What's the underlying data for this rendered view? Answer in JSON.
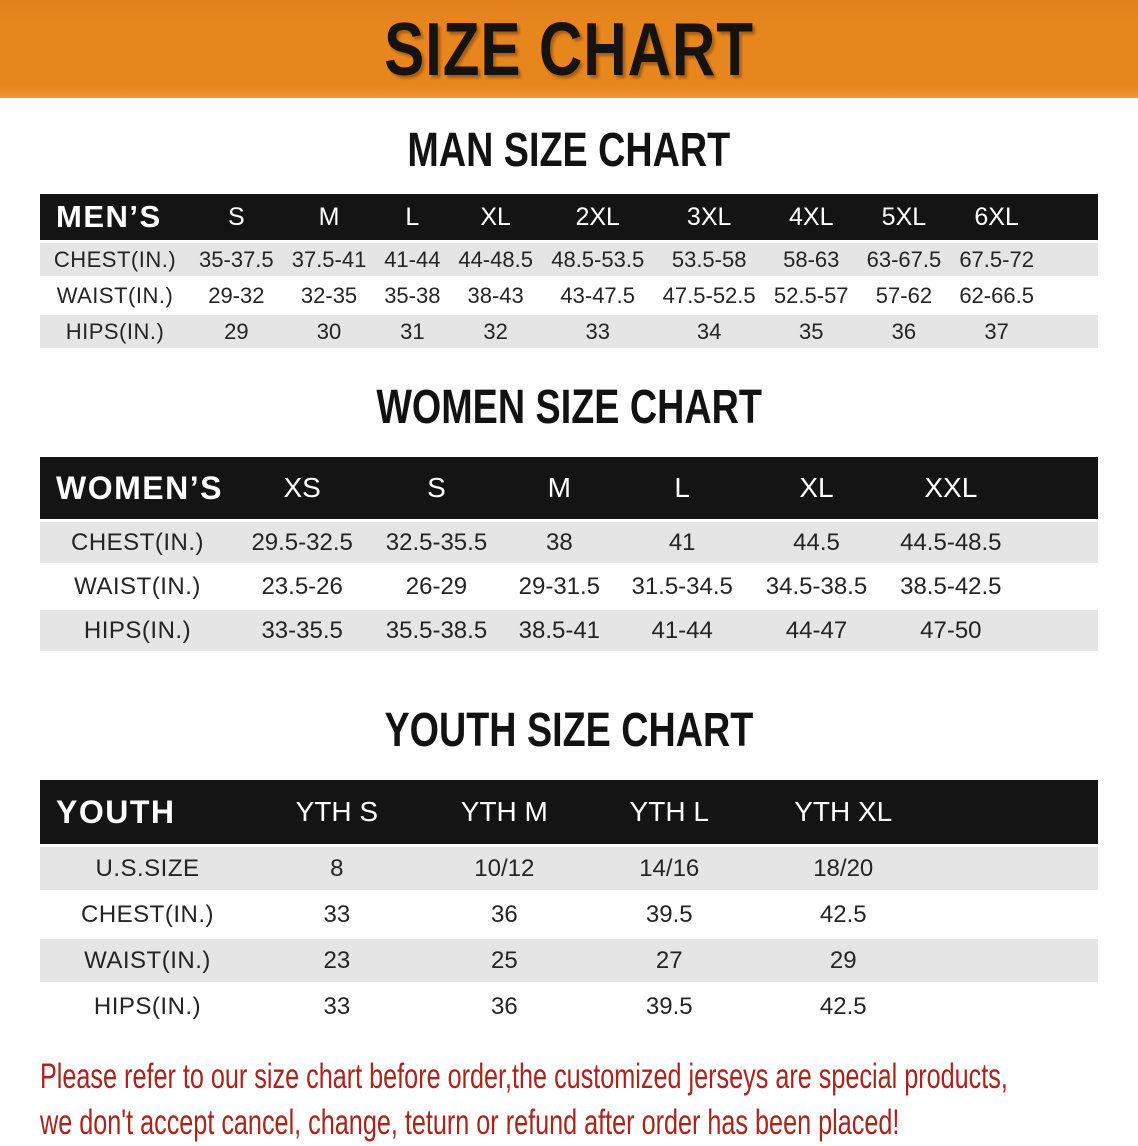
{
  "banner": {
    "title": "SIZE CHART"
  },
  "sections": [
    {
      "heading": "MAN SIZE CHART",
      "table": {
        "header_label": "MEN’S",
        "columns": [
          "S",
          "M",
          "L",
          "XL",
          "2XL",
          "3XL",
          "4XL",
          "5XL",
          "6XL"
        ],
        "rows": [
          {
            "label": "CHEST(IN.)",
            "values": [
              "35-37.5",
              "37.5-41",
              "41-44",
              "44-48.5",
              "48.5-53.5",
              "53.5-58",
              "58-63",
              "63-67.5",
              "67.5-72"
            ]
          },
          {
            "label": "WAIST(IN.)",
            "values": [
              "29-32",
              "32-35",
              "35-38",
              "38-43",
              "43-47.5",
              "47.5-52.5",
              "52.5-57",
              "57-62",
              "62-66.5"
            ]
          },
          {
            "label": "HIPS(IN.)",
            "values": [
              "29",
              "30",
              "31",
              "32",
              "33",
              "34",
              "35",
              "36",
              "37"
            ]
          }
        ]
      }
    },
    {
      "heading": "WOMEN SIZE CHART",
      "table": {
        "header_label": "WOMEN’S",
        "columns": [
          "XS",
          "S",
          "M",
          "L",
          "XL",
          "XXL"
        ],
        "rows": [
          {
            "label": "CHEST(IN.)",
            "values": [
              "29.5-32.5",
              "32.5-35.5",
              "38",
              "41",
              "44.5",
              "44.5-48.5"
            ]
          },
          {
            "label": "WAIST(IN.)",
            "values": [
              "23.5-26",
              "26-29",
              "29-31.5",
              "31.5-34.5",
              "34.5-38.5",
              "38.5-42.5"
            ]
          },
          {
            "label": "HIPS(IN.)",
            "values": [
              "33-35.5",
              "35.5-38.5",
              "38.5-41",
              "41-44",
              "44-47",
              "47-50"
            ]
          }
        ]
      }
    },
    {
      "heading": "YOUTH SIZE CHART",
      "table": {
        "header_label": "YOUTH",
        "columns": [
          "YTH S",
          "YTH M",
          "YTH L",
          "YTH XL"
        ],
        "rows": [
          {
            "label": "U.S.SIZE",
            "values": [
              "8",
              "10/12",
              "14/16",
              "18/20"
            ]
          },
          {
            "label": "CHEST(IN.)",
            "values": [
              "33",
              "36",
              "39.5",
              "42.5"
            ]
          },
          {
            "label": "WAIST(IN.)",
            "values": [
              "23",
              "25",
              "27",
              "29"
            ]
          },
          {
            "label": "HIPS(IN.)",
            "values": [
              "33",
              "36",
              "39.5",
              "42.5"
            ]
          }
        ]
      }
    }
  ],
  "footer": {
    "lines": [
      "Please refer to our size chart before order,the customized jerseys are special products,",
      "we don't accept cancel, change, teturn or refund after order has been placed!"
    ]
  },
  "colors": {
    "banner_bg": "#E8861E",
    "header_bar_bg": "#141414",
    "stripe_gray": "#E5E5E5",
    "footer_red": "#A6261E"
  }
}
